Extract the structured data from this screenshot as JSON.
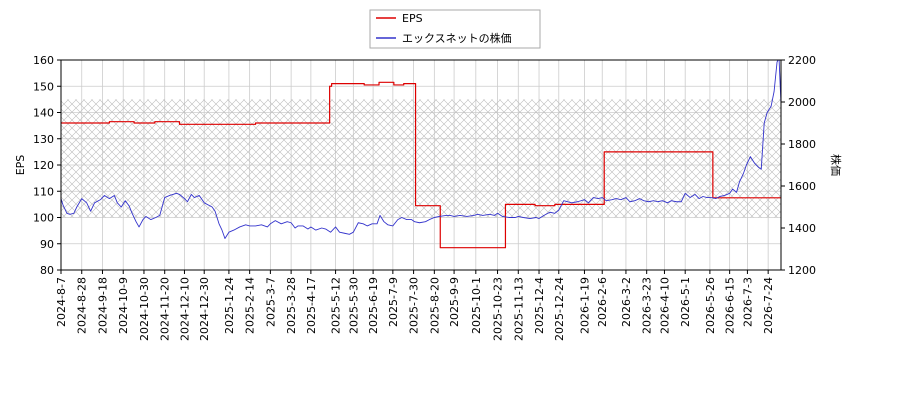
{
  "chart_data": {
    "type": "line",
    "legend": {
      "placement": "top-center",
      "entries": [
        {
          "label": "EPS",
          "color": "#dd0000"
        },
        {
          "label": "エックスネットの株価",
          "color": "#3333cc"
        }
      ]
    },
    "ylabel_left": "EPS",
    "ylabel_right": "株価",
    "ylim_left": [
      80,
      160
    ],
    "ylim_right": [
      1200,
      2200
    ],
    "yticks_left": [
      80,
      90,
      100,
      110,
      120,
      130,
      140,
      150,
      160
    ],
    "yticks_right": [
      1200,
      1400,
      1600,
      1800,
      2000,
      2200
    ],
    "xlim": [
      "2024-08-07",
      "2026-08-06"
    ],
    "xticks": [
      "2024-8-7",
      "2024-8-28",
      "2024-9-18",
      "2024-10-9",
      "2024-10-30",
      "2024-11-20",
      "2024-12-10",
      "2024-12-30",
      "2025-1-24",
      "2025-2-14",
      "2025-3-7",
      "2025-3-28",
      "2025-4-17",
      "2025-5-12",
      "2025-5-30",
      "2025-6-19",
      "2025-7-9",
      "2025-7-30",
      "2025-8-20",
      "2025-9-9",
      "2025-10-1",
      "2025-10-23",
      "2025-11-13",
      "2025-12-4",
      "2025-12-24",
      "2026-1-19",
      "2026-2-6",
      "2026-3-2",
      "2026-3-23",
      "2026-4-10",
      "2026-5-1",
      "2026-5-26",
      "2026-6-15",
      "2026-7-3",
      "2026-7-24"
    ],
    "hatched_band_left": [
      100,
      145
    ],
    "grid": true,
    "series": [
      {
        "name": "EPS",
        "axis": "left",
        "color": "#dd0000",
        "points": [
          [
            "2024-08-07",
            136
          ],
          [
            "2024-09-10",
            136
          ],
          [
            "2024-09-25",
            136.5
          ],
          [
            "2024-10-20",
            136
          ],
          [
            "2024-11-10",
            136.5
          ],
          [
            "2024-11-28",
            136.5
          ],
          [
            "2024-12-05",
            135.5
          ],
          [
            "2025-01-10",
            135.5
          ],
          [
            "2025-01-28",
            135.5
          ],
          [
            "2025-02-20",
            136
          ],
          [
            "2025-03-20",
            136
          ],
          [
            "2025-04-10",
            136
          ],
          [
            "2025-05-05",
            136
          ],
          [
            "2025-05-06",
            150
          ],
          [
            "2025-05-08",
            151
          ],
          [
            "2025-06-10",
            150.5
          ],
          [
            "2025-06-25",
            151.5
          ],
          [
            "2025-07-10",
            150.5
          ],
          [
            "2025-07-20",
            151
          ],
          [
            "2025-07-31",
            151
          ],
          [
            "2025-08-01",
            104.5
          ],
          [
            "2025-08-25",
            104.5
          ],
          [
            "2025-08-26",
            88.5
          ],
          [
            "2025-09-20",
            88.5
          ],
          [
            "2025-10-30",
            88.5
          ],
          [
            "2025-10-31",
            105
          ],
          [
            "2025-11-30",
            104.5
          ],
          [
            "2025-12-20",
            105
          ],
          [
            "2026-01-15",
            105
          ],
          [
            "2026-02-07",
            105
          ],
          [
            "2026-02-08",
            125
          ],
          [
            "2026-03-10",
            125
          ],
          [
            "2026-04-01",
            125
          ],
          [
            "2026-04-20",
            125
          ],
          [
            "2026-05-28",
            125
          ],
          [
            "2026-05-29",
            107.5
          ],
          [
            "2026-06-20",
            107.5
          ],
          [
            "2026-07-20",
            107.5
          ],
          [
            "2026-08-06",
            107.5
          ]
        ]
      },
      {
        "name": "エックスネットの株価",
        "axis": "right",
        "color": "#3333cc",
        "points": [
          [
            "2024-08-07",
            1540
          ],
          [
            "2024-08-09",
            1510
          ],
          [
            "2024-08-13",
            1470
          ],
          [
            "2024-08-16",
            1465
          ],
          [
            "2024-08-20",
            1470
          ],
          [
            "2024-08-23",
            1500
          ],
          [
            "2024-08-28",
            1540
          ],
          [
            "2024-09-02",
            1520
          ],
          [
            "2024-09-06",
            1480
          ],
          [
            "2024-09-10",
            1520
          ],
          [
            "2024-09-16",
            1535
          ],
          [
            "2024-09-20",
            1555
          ],
          [
            "2024-09-25",
            1540
          ],
          [
            "2024-09-30",
            1555
          ],
          [
            "2024-10-03",
            1520
          ],
          [
            "2024-10-07",
            1500
          ],
          [
            "2024-10-11",
            1530
          ],
          [
            "2024-10-15",
            1505
          ],
          [
            "2024-10-18",
            1470
          ],
          [
            "2024-10-22",
            1430
          ],
          [
            "2024-10-25",
            1405
          ],
          [
            "2024-10-29",
            1440
          ],
          [
            "2024-11-01",
            1455
          ],
          [
            "2024-11-06",
            1440
          ],
          [
            "2024-11-11",
            1450
          ],
          [
            "2024-11-15",
            1460
          ],
          [
            "2024-11-20",
            1545
          ],
          [
            "2024-11-25",
            1555
          ],
          [
            "2024-12-02",
            1565
          ],
          [
            "2024-12-05",
            1560
          ],
          [
            "2024-12-10",
            1540
          ],
          [
            "2024-12-13",
            1525
          ],
          [
            "2024-12-17",
            1560
          ],
          [
            "2024-12-20",
            1545
          ],
          [
            "2024-12-25",
            1555
          ],
          [
            "2024-12-30",
            1520
          ],
          [
            "2025-01-07",
            1500
          ],
          [
            "2025-01-10",
            1480
          ],
          [
            "2025-01-14",
            1420
          ],
          [
            "2025-01-17",
            1390
          ],
          [
            "2025-01-20",
            1350
          ],
          [
            "2025-01-24",
            1380
          ],
          [
            "2025-01-29",
            1390
          ],
          [
            "2025-02-04",
            1405
          ],
          [
            "2025-02-10",
            1415
          ],
          [
            "2025-02-14",
            1410
          ],
          [
            "2025-02-20",
            1410
          ],
          [
            "2025-02-26",
            1415
          ],
          [
            "2025-03-04",
            1405
          ],
          [
            "2025-03-07",
            1420
          ],
          [
            "2025-03-12",
            1435
          ],
          [
            "2025-03-18",
            1420
          ],
          [
            "2025-03-24",
            1430
          ],
          [
            "2025-03-28",
            1425
          ],
          [
            "2025-04-01",
            1400
          ],
          [
            "2025-04-04",
            1410
          ],
          [
            "2025-04-09",
            1410
          ],
          [
            "2025-04-14",
            1395
          ],
          [
            "2025-04-17",
            1405
          ],
          [
            "2025-04-22",
            1390
          ],
          [
            "2025-04-28",
            1400
          ],
          [
            "2025-05-02",
            1395
          ],
          [
            "2025-05-07",
            1380
          ],
          [
            "2025-05-12",
            1405
          ],
          [
            "2025-05-16",
            1380
          ],
          [
            "2025-05-21",
            1375
          ],
          [
            "2025-05-26",
            1370
          ],
          [
            "2025-05-30",
            1380
          ],
          [
            "2025-06-04",
            1425
          ],
          [
            "2025-06-09",
            1420
          ],
          [
            "2025-06-13",
            1410
          ],
          [
            "2025-06-18",
            1420
          ],
          [
            "2025-06-23",
            1420
          ],
          [
            "2025-06-26",
            1460
          ],
          [
            "2025-06-30",
            1430
          ],
          [
            "2025-07-04",
            1415
          ],
          [
            "2025-07-09",
            1410
          ],
          [
            "2025-07-14",
            1440
          ],
          [
            "2025-07-18",
            1450
          ],
          [
            "2025-07-23",
            1440
          ],
          [
            "2025-07-28",
            1440
          ],
          [
            "2025-07-31",
            1430
          ],
          [
            "2025-08-05",
            1425
          ],
          [
            "2025-08-11",
            1430
          ],
          [
            "2025-08-15",
            1440
          ],
          [
            "2025-08-20",
            1450
          ],
          [
            "2025-08-25",
            1455
          ],
          [
            "2025-09-01",
            1460
          ],
          [
            "2025-09-05",
            1460
          ],
          [
            "2025-09-09",
            1455
          ],
          [
            "2025-09-15",
            1460
          ],
          [
            "2025-09-22",
            1455
          ],
          [
            "2025-09-29",
            1460
          ],
          [
            "2025-10-03",
            1465
          ],
          [
            "2025-10-08",
            1460
          ],
          [
            "2025-10-15",
            1465
          ],
          [
            "2025-10-20",
            1460
          ],
          [
            "2025-10-23",
            1470
          ],
          [
            "2025-10-28",
            1455
          ],
          [
            "2025-11-04",
            1450
          ],
          [
            "2025-11-10",
            1450
          ],
          [
            "2025-11-13",
            1455
          ],
          [
            "2025-11-18",
            1450
          ],
          [
            "2025-11-25",
            1445
          ],
          [
            "2025-12-01",
            1450
          ],
          [
            "2025-12-04",
            1445
          ],
          [
            "2025-12-09",
            1460
          ],
          [
            "2025-12-15",
            1475
          ],
          [
            "2025-12-20",
            1470
          ],
          [
            "2025-12-24",
            1485
          ],
          [
            "2025-12-29",
            1530
          ],
          [
            "2026-01-06",
            1520
          ],
          [
            "2026-01-12",
            1525
          ],
          [
            "2026-01-19",
            1535
          ],
          [
            "2026-01-23",
            1520
          ],
          [
            "2026-01-28",
            1545
          ],
          [
            "2026-02-02",
            1540
          ],
          [
            "2026-02-06",
            1545
          ],
          [
            "2026-02-10",
            1530
          ],
          [
            "2026-02-16",
            1535
          ],
          [
            "2026-02-20",
            1540
          ],
          [
            "2026-02-25",
            1535
          ],
          [
            "2026-03-02",
            1545
          ],
          [
            "2026-03-06",
            1525
          ],
          [
            "2026-03-11",
            1530
          ],
          [
            "2026-03-16",
            1540
          ],
          [
            "2026-03-20",
            1530
          ],
          [
            "2026-03-25",
            1525
          ],
          [
            "2026-03-30",
            1530
          ],
          [
            "2026-04-03",
            1525
          ],
          [
            "2026-04-08",
            1530
          ],
          [
            "2026-04-13",
            1520
          ],
          [
            "2026-04-17",
            1530
          ],
          [
            "2026-04-22",
            1525
          ],
          [
            "2026-04-27",
            1525
          ],
          [
            "2026-05-01",
            1565
          ],
          [
            "2026-05-06",
            1545
          ],
          [
            "2026-05-11",
            1560
          ],
          [
            "2026-05-15",
            1540
          ],
          [
            "2026-05-19",
            1550
          ],
          [
            "2026-05-23",
            1545
          ],
          [
            "2026-05-27",
            1545
          ],
          [
            "2026-06-01",
            1540
          ],
          [
            "2026-06-05",
            1550
          ],
          [
            "2026-06-10",
            1555
          ],
          [
            "2026-06-15",
            1565
          ],
          [
            "2026-06-18",
            1585
          ],
          [
            "2026-06-22",
            1570
          ],
          [
            "2026-06-25",
            1620
          ],
          [
            "2026-06-29",
            1660
          ],
          [
            "2026-07-02",
            1700
          ],
          [
            "2026-07-06",
            1740
          ],
          [
            "2026-07-10",
            1710
          ],
          [
            "2026-07-14",
            1690
          ],
          [
            "2026-07-17",
            1680
          ],
          [
            "2026-07-20",
            1900
          ],
          [
            "2026-07-23",
            1950
          ],
          [
            "2026-07-27",
            1980
          ],
          [
            "2026-07-30",
            2050
          ],
          [
            "2026-08-02",
            2190
          ],
          [
            "2026-08-04",
            2210
          ],
          [
            "2026-08-06",
            1990
          ]
        ]
      }
    ]
  }
}
